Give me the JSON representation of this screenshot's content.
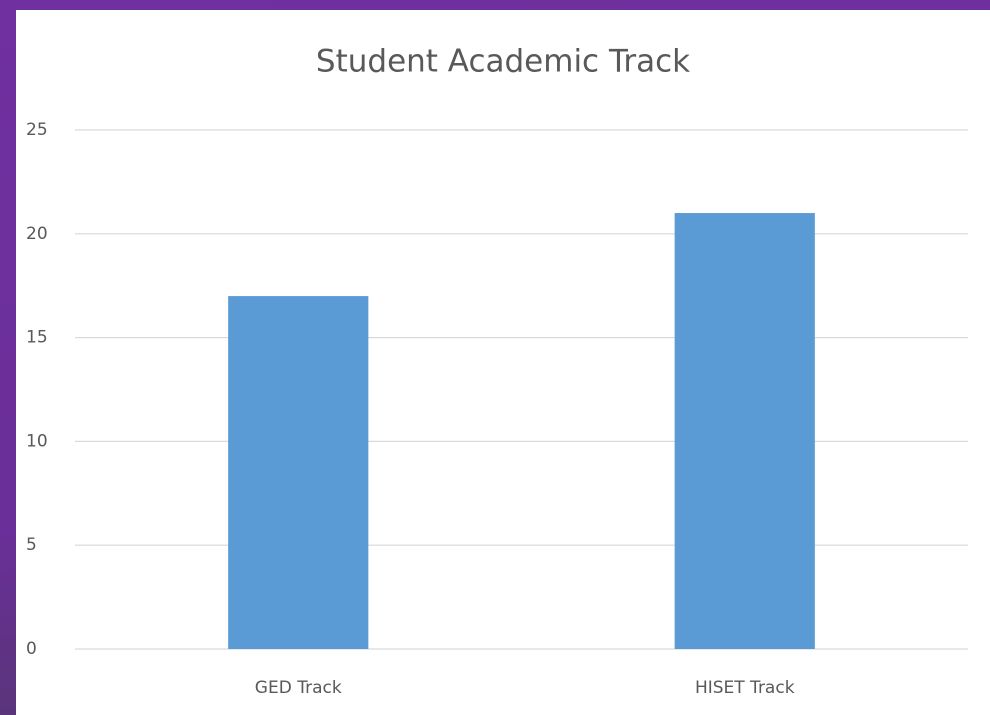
{
  "chart_data": {
    "type": "bar",
    "title": "Student Academic Track",
    "categories": [
      "GED Track",
      "HISET Track"
    ],
    "values": [
      17,
      21
    ],
    "color": "#5b9bd5",
    "ylim": [
      0,
      25
    ],
    "yticks": [
      0,
      5,
      10,
      15,
      20,
      25
    ],
    "grid": true
  }
}
